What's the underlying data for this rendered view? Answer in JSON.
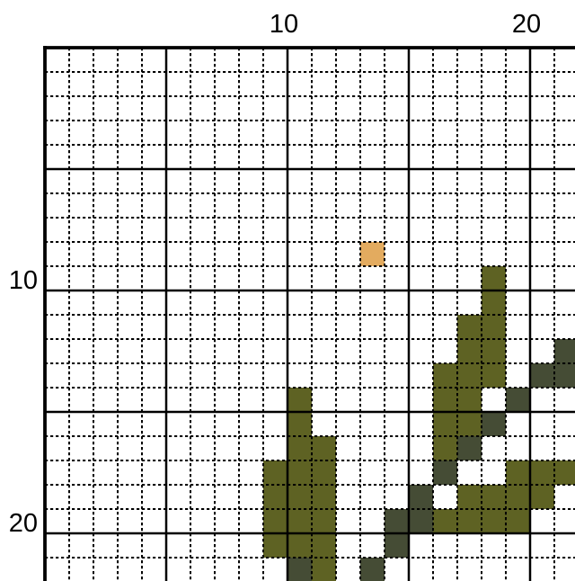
{
  "chart_data": {
    "type": "heatmap",
    "title": "",
    "description": "Cross-stitch pattern grid (chart cropped at right and bottom edges). Cells are referenced by 0-indexed grid column/row from the visible top-left corner; bold gridlines every 5 cells; numbered gridlines every 10 cells.",
    "grid": {
      "cols_visible": 22,
      "rows_visible": 22,
      "minor_step": 1,
      "major_step": 5,
      "numbered_step": 10,
      "line_color": "#000000",
      "background_color": "#ffffff",
      "grid_on": true
    },
    "axes": {
      "top_labels": [
        {
          "text": "10",
          "col": 10
        },
        {
          "text": "20",
          "col": 20
        }
      ],
      "left_labels": [
        {
          "text": "10",
          "row": 10
        },
        {
          "text": "20",
          "row": 20
        }
      ]
    },
    "palette": {
      "olive": "#5e6223",
      "dark_olive": "#454c35",
      "tan": "#e3ab5f"
    },
    "cells_format": [
      "col",
      "row",
      "color_key"
    ],
    "cells": [
      [
        13,
        8,
        "tan"
      ],
      [
        18,
        9,
        "olive"
      ],
      [
        18,
        10,
        "olive"
      ],
      [
        17,
        11,
        "olive"
      ],
      [
        18,
        11,
        "olive"
      ],
      [
        17,
        12,
        "olive"
      ],
      [
        18,
        12,
        "olive"
      ],
      [
        21,
        12,
        "dark_olive"
      ],
      [
        16,
        13,
        "olive"
      ],
      [
        17,
        13,
        "olive"
      ],
      [
        18,
        13,
        "olive"
      ],
      [
        20,
        13,
        "dark_olive"
      ],
      [
        21,
        13,
        "dark_olive"
      ],
      [
        10,
        14,
        "olive"
      ],
      [
        16,
        14,
        "olive"
      ],
      [
        17,
        14,
        "olive"
      ],
      [
        19,
        14,
        "dark_olive"
      ],
      [
        10,
        15,
        "olive"
      ],
      [
        16,
        15,
        "olive"
      ],
      [
        17,
        15,
        "olive"
      ],
      [
        18,
        15,
        "dark_olive"
      ],
      [
        10,
        16,
        "olive"
      ],
      [
        11,
        16,
        "olive"
      ],
      [
        16,
        16,
        "olive"
      ],
      [
        17,
        16,
        "dark_olive"
      ],
      [
        9,
        17,
        "olive"
      ],
      [
        10,
        17,
        "olive"
      ],
      [
        11,
        17,
        "olive"
      ],
      [
        16,
        17,
        "dark_olive"
      ],
      [
        19,
        17,
        "olive"
      ],
      [
        20,
        17,
        "olive"
      ],
      [
        21,
        17,
        "olive"
      ],
      [
        9,
        18,
        "olive"
      ],
      [
        10,
        18,
        "olive"
      ],
      [
        11,
        18,
        "olive"
      ],
      [
        15,
        18,
        "dark_olive"
      ],
      [
        17,
        18,
        "olive"
      ],
      [
        18,
        18,
        "olive"
      ],
      [
        19,
        18,
        "olive"
      ],
      [
        20,
        18,
        "olive"
      ],
      [
        9,
        19,
        "olive"
      ],
      [
        10,
        19,
        "olive"
      ],
      [
        11,
        19,
        "olive"
      ],
      [
        14,
        19,
        "dark_olive"
      ],
      [
        15,
        19,
        "dark_olive"
      ],
      [
        16,
        19,
        "olive"
      ],
      [
        17,
        19,
        "olive"
      ],
      [
        18,
        19,
        "olive"
      ],
      [
        19,
        19,
        "olive"
      ],
      [
        9,
        20,
        "olive"
      ],
      [
        10,
        20,
        "olive"
      ],
      [
        11,
        20,
        "olive"
      ],
      [
        14,
        20,
        "dark_olive"
      ],
      [
        10,
        21,
        "dark_olive"
      ],
      [
        11,
        21,
        "olive"
      ],
      [
        13,
        21,
        "dark_olive"
      ]
    ]
  }
}
